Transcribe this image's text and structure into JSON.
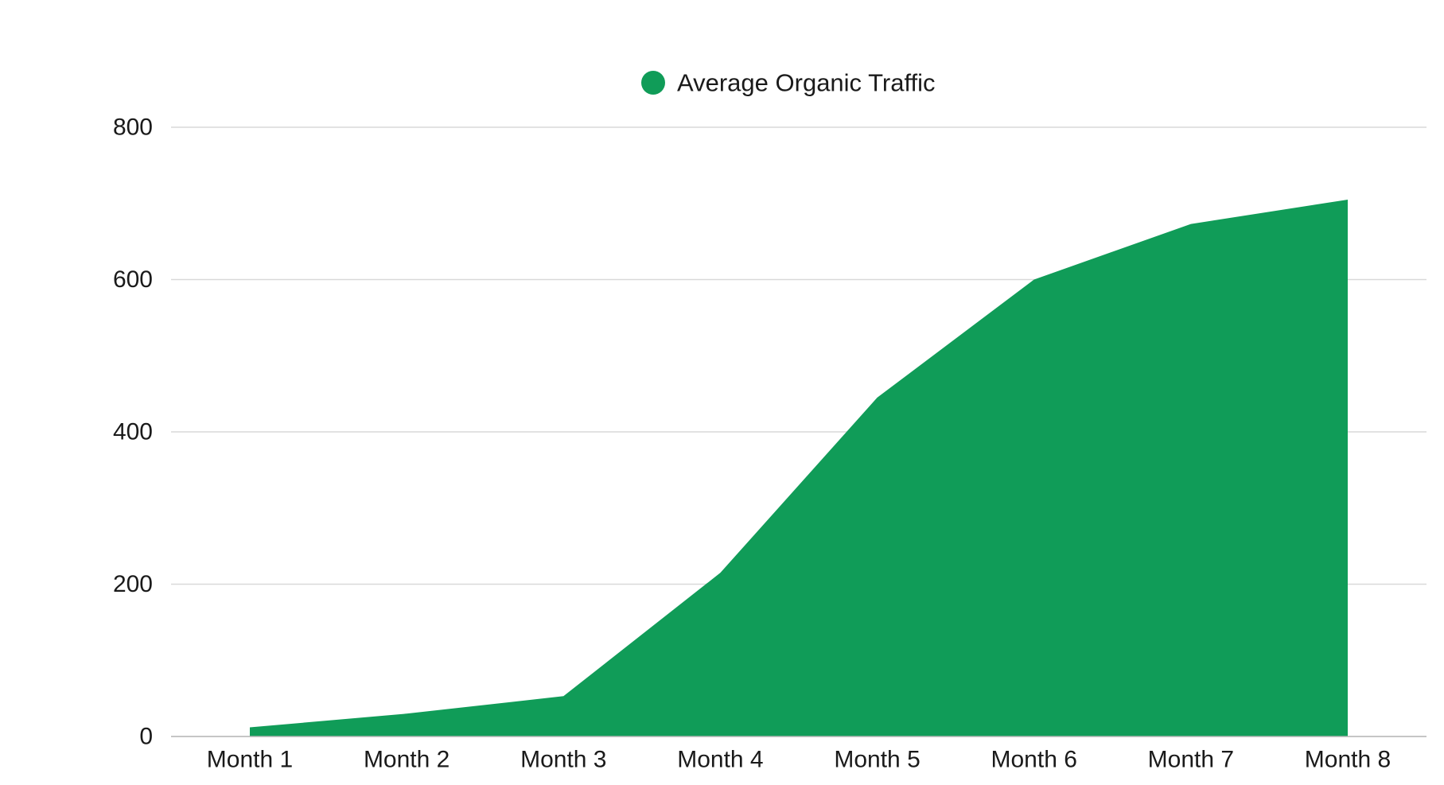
{
  "chart_data": {
    "type": "area",
    "title": "",
    "xlabel": "",
    "ylabel": "",
    "categories": [
      "Month 1",
      "Month 2",
      "Month 3",
      "Month 4",
      "Month 5",
      "Month 6",
      "Month 7",
      "Month 8"
    ],
    "series": [
      {
        "name": "Average Organic Traffic",
        "color": "#109c58",
        "values": [
          12,
          30,
          53,
          215,
          445,
          600,
          673,
          705
        ]
      }
    ],
    "ylim": [
      0,
      800
    ],
    "yticks": [
      0,
      200,
      400,
      600,
      800
    ],
    "grid": true,
    "legend": "top-center"
  }
}
